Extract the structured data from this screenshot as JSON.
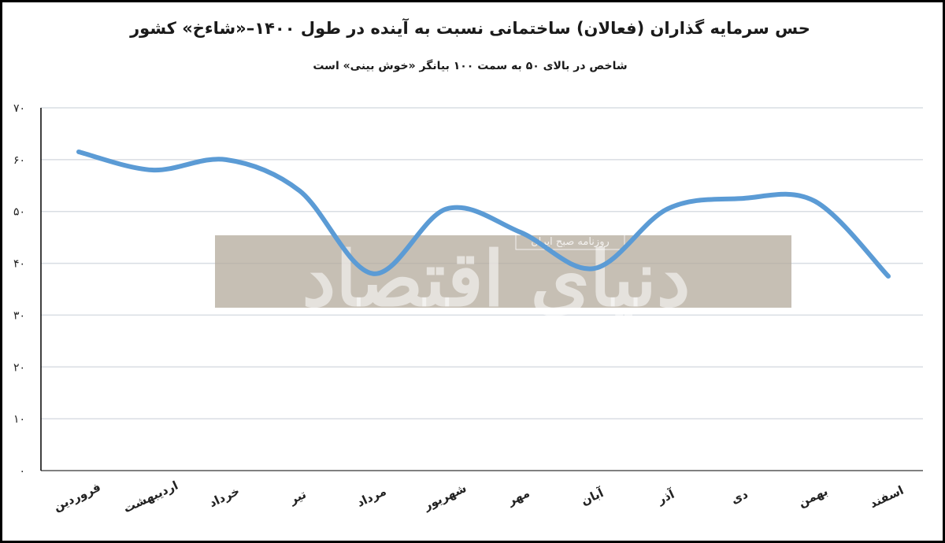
{
  "chart_data": {
    "type": "line",
    "title": "حس سرمایه گذاران (فعالان) ساختمانی نسبت به آینده در طول ۱۴۰۰–«شاءخ» کشور",
    "subtitle": "شاخص در بالای ۵۰ به سمت ۱۰۰ بیانگر «خوش بینی» است",
    "categories": [
      "فروردین",
      "اردیبهشت",
      "خرداد",
      "تیر",
      "مرداد",
      "شهریور",
      "مهر",
      "آبان",
      "آذر",
      "دی",
      "بهمن",
      "اسفند"
    ],
    "series": [
      {
        "values": [
          61.5,
          58,
          60,
          54,
          38,
          50.5,
          46,
          39,
          50.5,
          52.5,
          52,
          37.5
        ]
      }
    ],
    "ylim": [
      0,
      70
    ],
    "yticks": [
      0,
      10,
      20,
      30,
      40,
      50,
      60,
      70
    ],
    "ytick_labels": [
      "۰",
      "۱۰",
      "۲۰",
      "۳۰",
      "۴۰",
      "۵۰",
      "۶۰",
      "۷۰"
    ],
    "grid": true,
    "line_color": "#5b9bd5",
    "grid_color": "#d9dde3",
    "watermark": {
      "text": "دنیای اقتصاد",
      "subtext": "روزنامه صبح ایران",
      "band_color": "#b3a99b"
    }
  }
}
